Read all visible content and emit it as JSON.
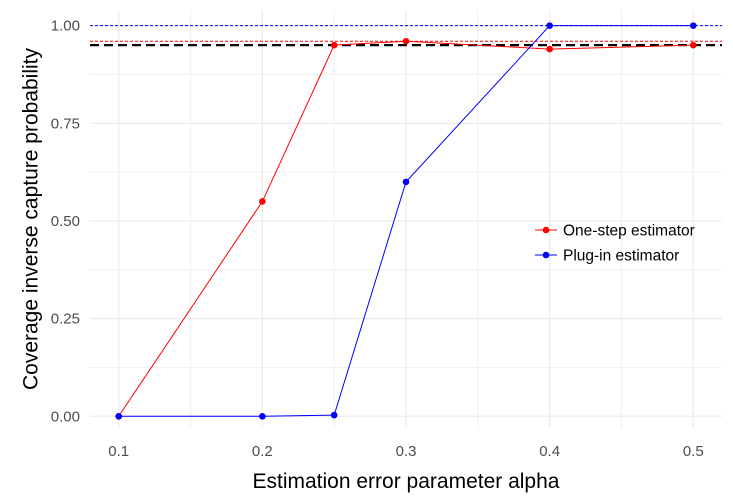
{
  "chart_data": {
    "type": "line",
    "title": "",
    "xlabel": "Estimation error parameter alpha",
    "ylabel": "Coverage inverse capture probability",
    "xlim": [
      0.08,
      0.52
    ],
    "ylim": [
      -0.03,
      1.04
    ],
    "x_ticks": [
      "0.1",
      "0.2",
      "0.3",
      "0.4",
      "0.5"
    ],
    "x_tick_values": [
      0.1,
      0.2,
      0.3,
      0.4,
      0.5
    ],
    "y_ticks": [
      "0.00",
      "0.25",
      "0.50",
      "0.75",
      "1.00"
    ],
    "y_tick_values": [
      0,
      0.25,
      0.5,
      0.75,
      1.0
    ],
    "grid": true,
    "legend_position": "right",
    "series": [
      {
        "name": "One-step estimator",
        "color": "#ff0000",
        "x": [
          0.1,
          0.2,
          0.25,
          0.3,
          0.4,
          0.5
        ],
        "y": [
          0.0,
          0.55,
          0.95,
          0.96,
          0.94,
          0.95
        ]
      },
      {
        "name": "Plug-in estimator",
        "color": "#0000ff",
        "x": [
          0.1,
          0.2,
          0.25,
          0.3,
          0.4,
          0.5
        ],
        "y": [
          0.0,
          0.0,
          0.003,
          0.6,
          1.0,
          1.0
        ]
      }
    ],
    "reference_lines": [
      {
        "y": 0.95,
        "color": "#000000",
        "style": "long-dash"
      },
      {
        "y": 1.0,
        "color": "#0000ff",
        "style": "short-dash"
      },
      {
        "y": 0.96,
        "color": "#ff0000",
        "style": "short-dash"
      }
    ]
  }
}
